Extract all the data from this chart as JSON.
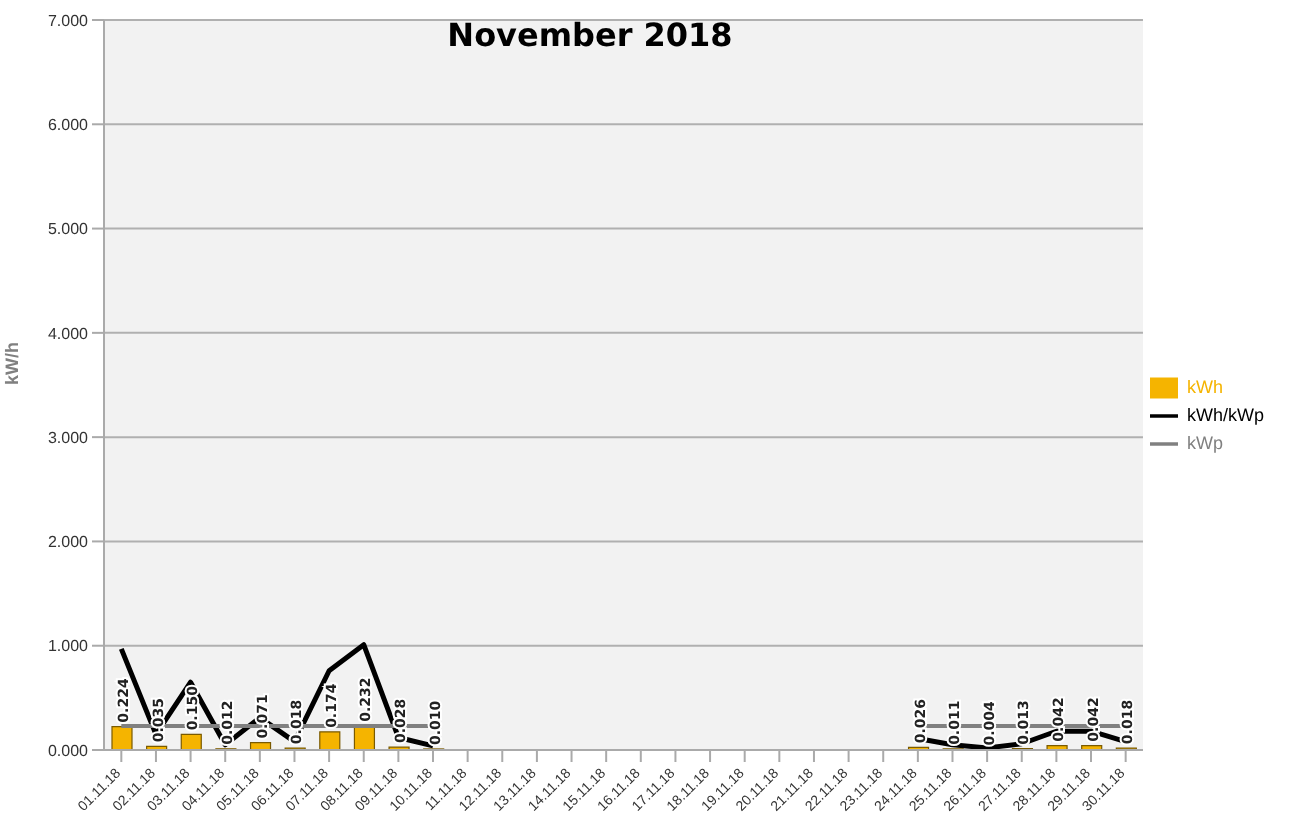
{
  "chart_data": {
    "type": "bar",
    "title": "November 2018",
    "ylabel": "kW/h",
    "categories": [
      "01.11.18",
      "02.11.18",
      "03.11.18",
      "04.11.18",
      "05.11.18",
      "06.11.18",
      "07.11.18",
      "08.11.18",
      "09.11.18",
      "10.11.18",
      "11.11.18",
      "12.11.18",
      "13.11.18",
      "14.11.18",
      "15.11.18",
      "16.11.18",
      "17.11.18",
      "18.11.18",
      "19.11.18",
      "20.11.18",
      "21.11.18",
      "22.11.18",
      "23.11.18",
      "24.11.18",
      "25.11.18",
      "26.11.18",
      "27.11.18",
      "28.11.18",
      "29.11.18",
      "30.11.18"
    ],
    "series": [
      {
        "name": "kWh",
        "color": "#f5b400",
        "values": [
          0.224,
          0.035,
          0.15,
          0.012,
          0.071,
          0.018,
          0.174,
          0.232,
          0.028,
          0.01,
          null,
          null,
          null,
          null,
          null,
          null,
          null,
          null,
          null,
          null,
          null,
          null,
          null,
          0.026,
          0.011,
          0.004,
          0.013,
          0.042,
          0.042,
          0.018
        ],
        "value_labels": [
          "0.224",
          "0.035",
          "0.150",
          "0.012",
          "0.071",
          "0.018",
          "0.174",
          "0.232",
          "0.028",
          "0.010",
          null,
          null,
          null,
          null,
          null,
          null,
          null,
          null,
          null,
          null,
          null,
          null,
          null,
          "0.026",
          "0.011",
          "0.004",
          "0.013",
          "0.042",
          "0.042",
          "0.018"
        ]
      },
      {
        "name": "kWh/kWp",
        "type": "line",
        "color": "#000000",
        "values": [
          0.97,
          0.15,
          0.65,
          0.05,
          0.31,
          0.08,
          0.76,
          1.01,
          0.12,
          0.04,
          null,
          null,
          null,
          null,
          null,
          null,
          null,
          null,
          null,
          null,
          null,
          null,
          null,
          0.11,
          0.05,
          0.02,
          0.06,
          0.18,
          0.18,
          0.08
        ]
      },
      {
        "name": "kWp",
        "type": "line",
        "color": "#808080",
        "values": [
          0.23,
          0.23,
          0.23,
          0.23,
          0.23,
          0.23,
          0.23,
          0.23,
          0.23,
          0.23,
          null,
          null,
          null,
          null,
          null,
          null,
          null,
          null,
          null,
          null,
          null,
          null,
          null,
          0.23,
          0.23,
          0.23,
          0.23,
          0.23,
          0.23,
          0.23
        ]
      }
    ],
    "ylim": [
      0,
      7
    ],
    "yticks": [
      {
        "value": 0,
        "label": "0.000"
      },
      {
        "value": 1,
        "label": "1.000"
      },
      {
        "value": 2,
        "label": "2.000"
      },
      {
        "value": 3,
        "label": "3.000"
      },
      {
        "value": 4,
        "label": "4.000"
      },
      {
        "value": 5,
        "label": "5.000"
      },
      {
        "value": 6,
        "label": "6.000"
      },
      {
        "value": 7,
        "label": "7.000"
      }
    ],
    "grid": "y",
    "legend": "right",
    "marker": "none"
  }
}
